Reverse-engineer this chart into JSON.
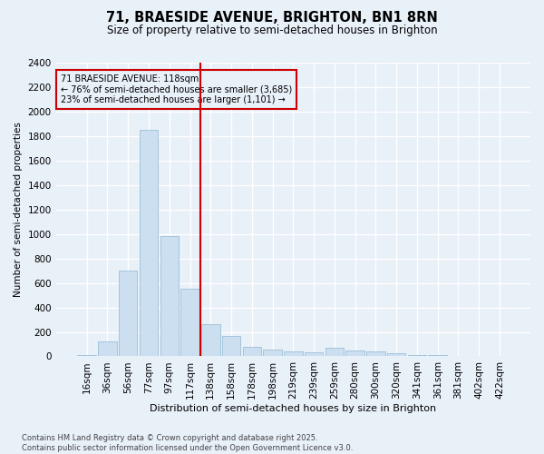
{
  "title_line1": "71, BRAESIDE AVENUE, BRIGHTON, BN1 8RN",
  "title_line2": "Size of property relative to semi-detached houses in Brighton",
  "xlabel": "Distribution of semi-detached houses by size in Brighton",
  "ylabel": "Number of semi-detached properties",
  "categories": [
    "16sqm",
    "36sqm",
    "56sqm",
    "77sqm",
    "97sqm",
    "117sqm",
    "138sqm",
    "158sqm",
    "178sqm",
    "198sqm",
    "219sqm",
    "239sqm",
    "259sqm",
    "280sqm",
    "300sqm",
    "320sqm",
    "341sqm",
    "361sqm",
    "381sqm",
    "402sqm",
    "422sqm"
  ],
  "values": [
    8,
    120,
    700,
    1850,
    980,
    550,
    265,
    165,
    75,
    55,
    40,
    30,
    70,
    50,
    40,
    25,
    12,
    10,
    6,
    5,
    2
  ],
  "bar_color": "#ccdff0",
  "bar_edge_color": "#9bbfd8",
  "vline_index": 5.5,
  "vline_color": "#cc0000",
  "annotation_text": "71 BRAESIDE AVENUE: 118sqm\n← 76% of semi-detached houses are smaller (3,685)\n23% of semi-detached houses are larger (1,101) →",
  "annotation_box_color": "#cc0000",
  "background_color": "#e8f0f8",
  "grid_color": "#ffffff",
  "ylim": [
    0,
    2400
  ],
  "yticks": [
    0,
    200,
    400,
    600,
    800,
    1000,
    1200,
    1400,
    1600,
    1800,
    2000,
    2200,
    2400
  ],
  "footer_line1": "Contains HM Land Registry data © Crown copyright and database right 2025.",
  "footer_line2": "Contains public sector information licensed under the Open Government Licence v3.0."
}
